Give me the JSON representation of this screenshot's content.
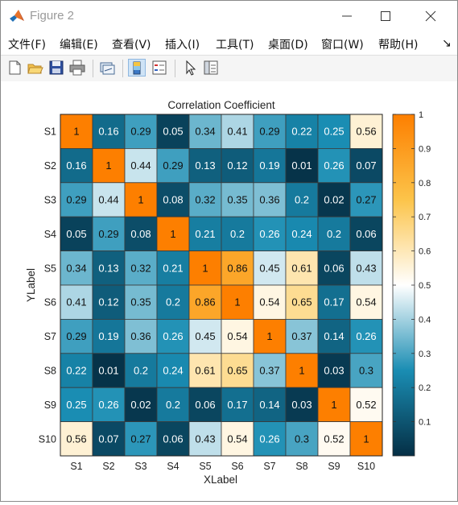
{
  "window": {
    "title": "Figure 2",
    "controls": [
      "minimize",
      "maximize",
      "close"
    ]
  },
  "menu": {
    "items": [
      "文件(F)",
      "编辑(E)",
      "查看(V)",
      "插入(I)",
      "工具(T)",
      "桌面(D)",
      "窗口(W)",
      "帮助(H)"
    ],
    "overflow": "↘"
  },
  "toolbar": {
    "buttons": [
      "new-figure-icon",
      "open-file-icon",
      "save-icon",
      "print-icon",
      "link-plot-icon",
      "colorbar-icon",
      "legend-icon",
      "pointer-icon",
      "property-inspector-icon"
    ]
  },
  "chart_data": {
    "type": "heatmap",
    "title": "Correlation Coefficient",
    "xlabel": "XLabel",
    "ylabel": "YLabel",
    "x_categories": [
      "S1",
      "S2",
      "S3",
      "S4",
      "S5",
      "S6",
      "S7",
      "S8",
      "S9",
      "S10"
    ],
    "y_categories": [
      "S1",
      "S2",
      "S3",
      "S4",
      "S5",
      "S6",
      "S7",
      "S8",
      "S9",
      "S10"
    ],
    "values": [
      [
        1,
        0.16,
        0.29,
        0.05,
        0.34,
        0.41,
        0.29,
        0.22,
        0.25,
        0.56
      ],
      [
        0.16,
        1,
        0.44,
        0.29,
        0.13,
        0.12,
        0.19,
        0.01,
        0.26,
        0.07
      ],
      [
        0.29,
        0.44,
        1,
        0.08,
        0.32,
        0.35,
        0.36,
        0.2,
        0.02,
        0.27
      ],
      [
        0.05,
        0.29,
        0.08,
        1,
        0.21,
        0.2,
        0.26,
        0.24,
        0.2,
        0.06
      ],
      [
        0.34,
        0.13,
        0.32,
        0.21,
        1,
        0.86,
        0.45,
        0.61,
        0.06,
        0.43
      ],
      [
        0.41,
        0.12,
        0.35,
        0.2,
        0.86,
        1,
        0.54,
        0.65,
        0.17,
        0.54
      ],
      [
        0.29,
        0.19,
        0.36,
        0.26,
        0.45,
        0.54,
        1,
        0.37,
        0.14,
        0.26
      ],
      [
        0.22,
        0.01,
        0.2,
        0.24,
        0.61,
        0.65,
        0.37,
        1,
        0.03,
        0.3
      ],
      [
        0.25,
        0.26,
        0.02,
        0.2,
        0.06,
        0.17,
        0.14,
        0.03,
        1,
        0.52
      ],
      [
        0.56,
        0.07,
        0.27,
        0.06,
        0.43,
        0.54,
        0.26,
        0.3,
        0.52,
        1
      ]
    ],
    "colorbar": {
      "range": [
        0,
        1
      ],
      "ticks": [
        0.1,
        0.2,
        0.3,
        0.4,
        0.5,
        0.6,
        0.7,
        0.8,
        0.9,
        1
      ],
      "tick_labels": [
        "0.1",
        "0.2",
        "0.3",
        "0.4",
        "0.5",
        "0.6",
        "0.7",
        "0.8",
        "0.9",
        "1"
      ],
      "colormap_stops": [
        {
          "v": 0.0,
          "color": "#052f45"
        },
        {
          "v": 0.25,
          "color": "#1a8db3"
        },
        {
          "v": 0.5,
          "color": "#ffffff"
        },
        {
          "v": 0.75,
          "color": "#fcc44a"
        },
        {
          "v": 1.0,
          "color": "#fd7f00"
        }
      ]
    }
  }
}
